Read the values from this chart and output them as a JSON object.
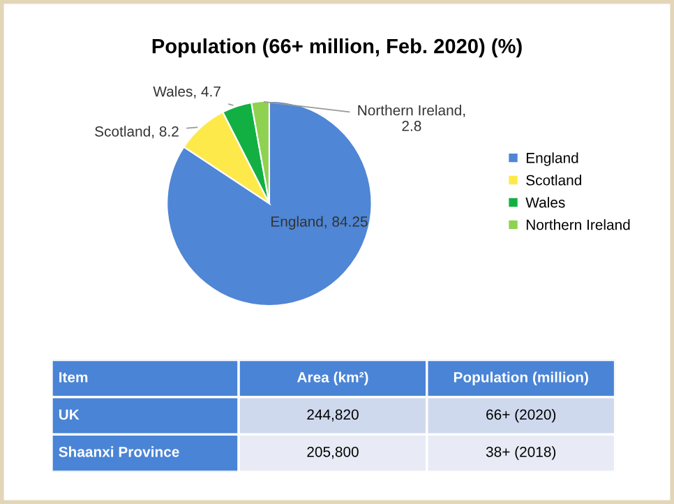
{
  "chart_data": [
    {
      "type": "pie",
      "title": "Population (66+ million, Feb. 2020) (%)",
      "categories": [
        "England",
        "Scotland",
        "Wales",
        "Northern Ireland"
      ],
      "values": [
        84.25,
        8.2,
        4.7,
        2.8
      ],
      "colors": [
        "#4f86d6",
        "#fde94a",
        "#12b043",
        "#8fd150"
      ],
      "value_labels": [
        "England, 84.25",
        "Scotland, 8.2",
        "Wales, 4.7",
        "Northern Ireland, 2.8"
      ],
      "legend": "right"
    },
    {
      "type": "other",
      "annotations": [
        "Item",
        "Area (km²)",
        "Population (million)",
        "UK",
        "244,820",
        "66+ (2020)",
        "Shaanxi Province",
        "205,800",
        "38+ (2018)"
      ]
    }
  ]
}
